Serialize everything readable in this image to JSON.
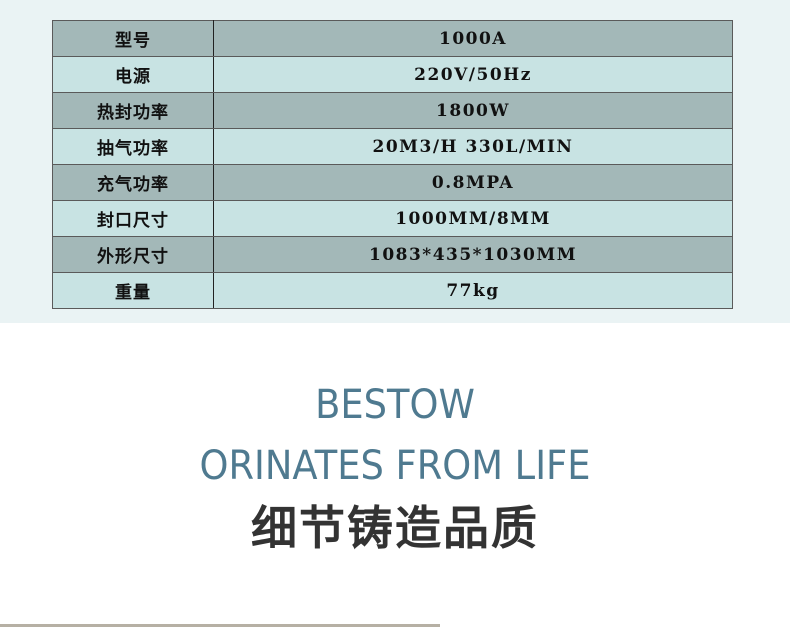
{
  "specs": [
    {
      "label": "型号",
      "value": "1000A"
    },
    {
      "label": "电源",
      "value": "220V/50Hz"
    },
    {
      "label": "热封功率",
      "value": "1800W"
    },
    {
      "label": "抽气功率",
      "value": "20M3/H 330L/MIN"
    },
    {
      "label": "充气功率",
      "value": "0.8MPA"
    },
    {
      "label": "封口尺寸",
      "value": "1000MM/8MM"
    },
    {
      "label": "外形尺寸",
      "value": "1083*435*1030MM"
    },
    {
      "label": "重量",
      "value": "77kg"
    }
  ],
  "slogan": {
    "line1": "BESTOW",
    "line2": "ORINATES FROM LIFE",
    "cn": "细节铸造品质"
  },
  "colors": {
    "row_dark": "#a3b8b8",
    "row_light": "#c8e3e3",
    "slogan_en": "#4f7a90",
    "slogan_cn": "#333333"
  }
}
